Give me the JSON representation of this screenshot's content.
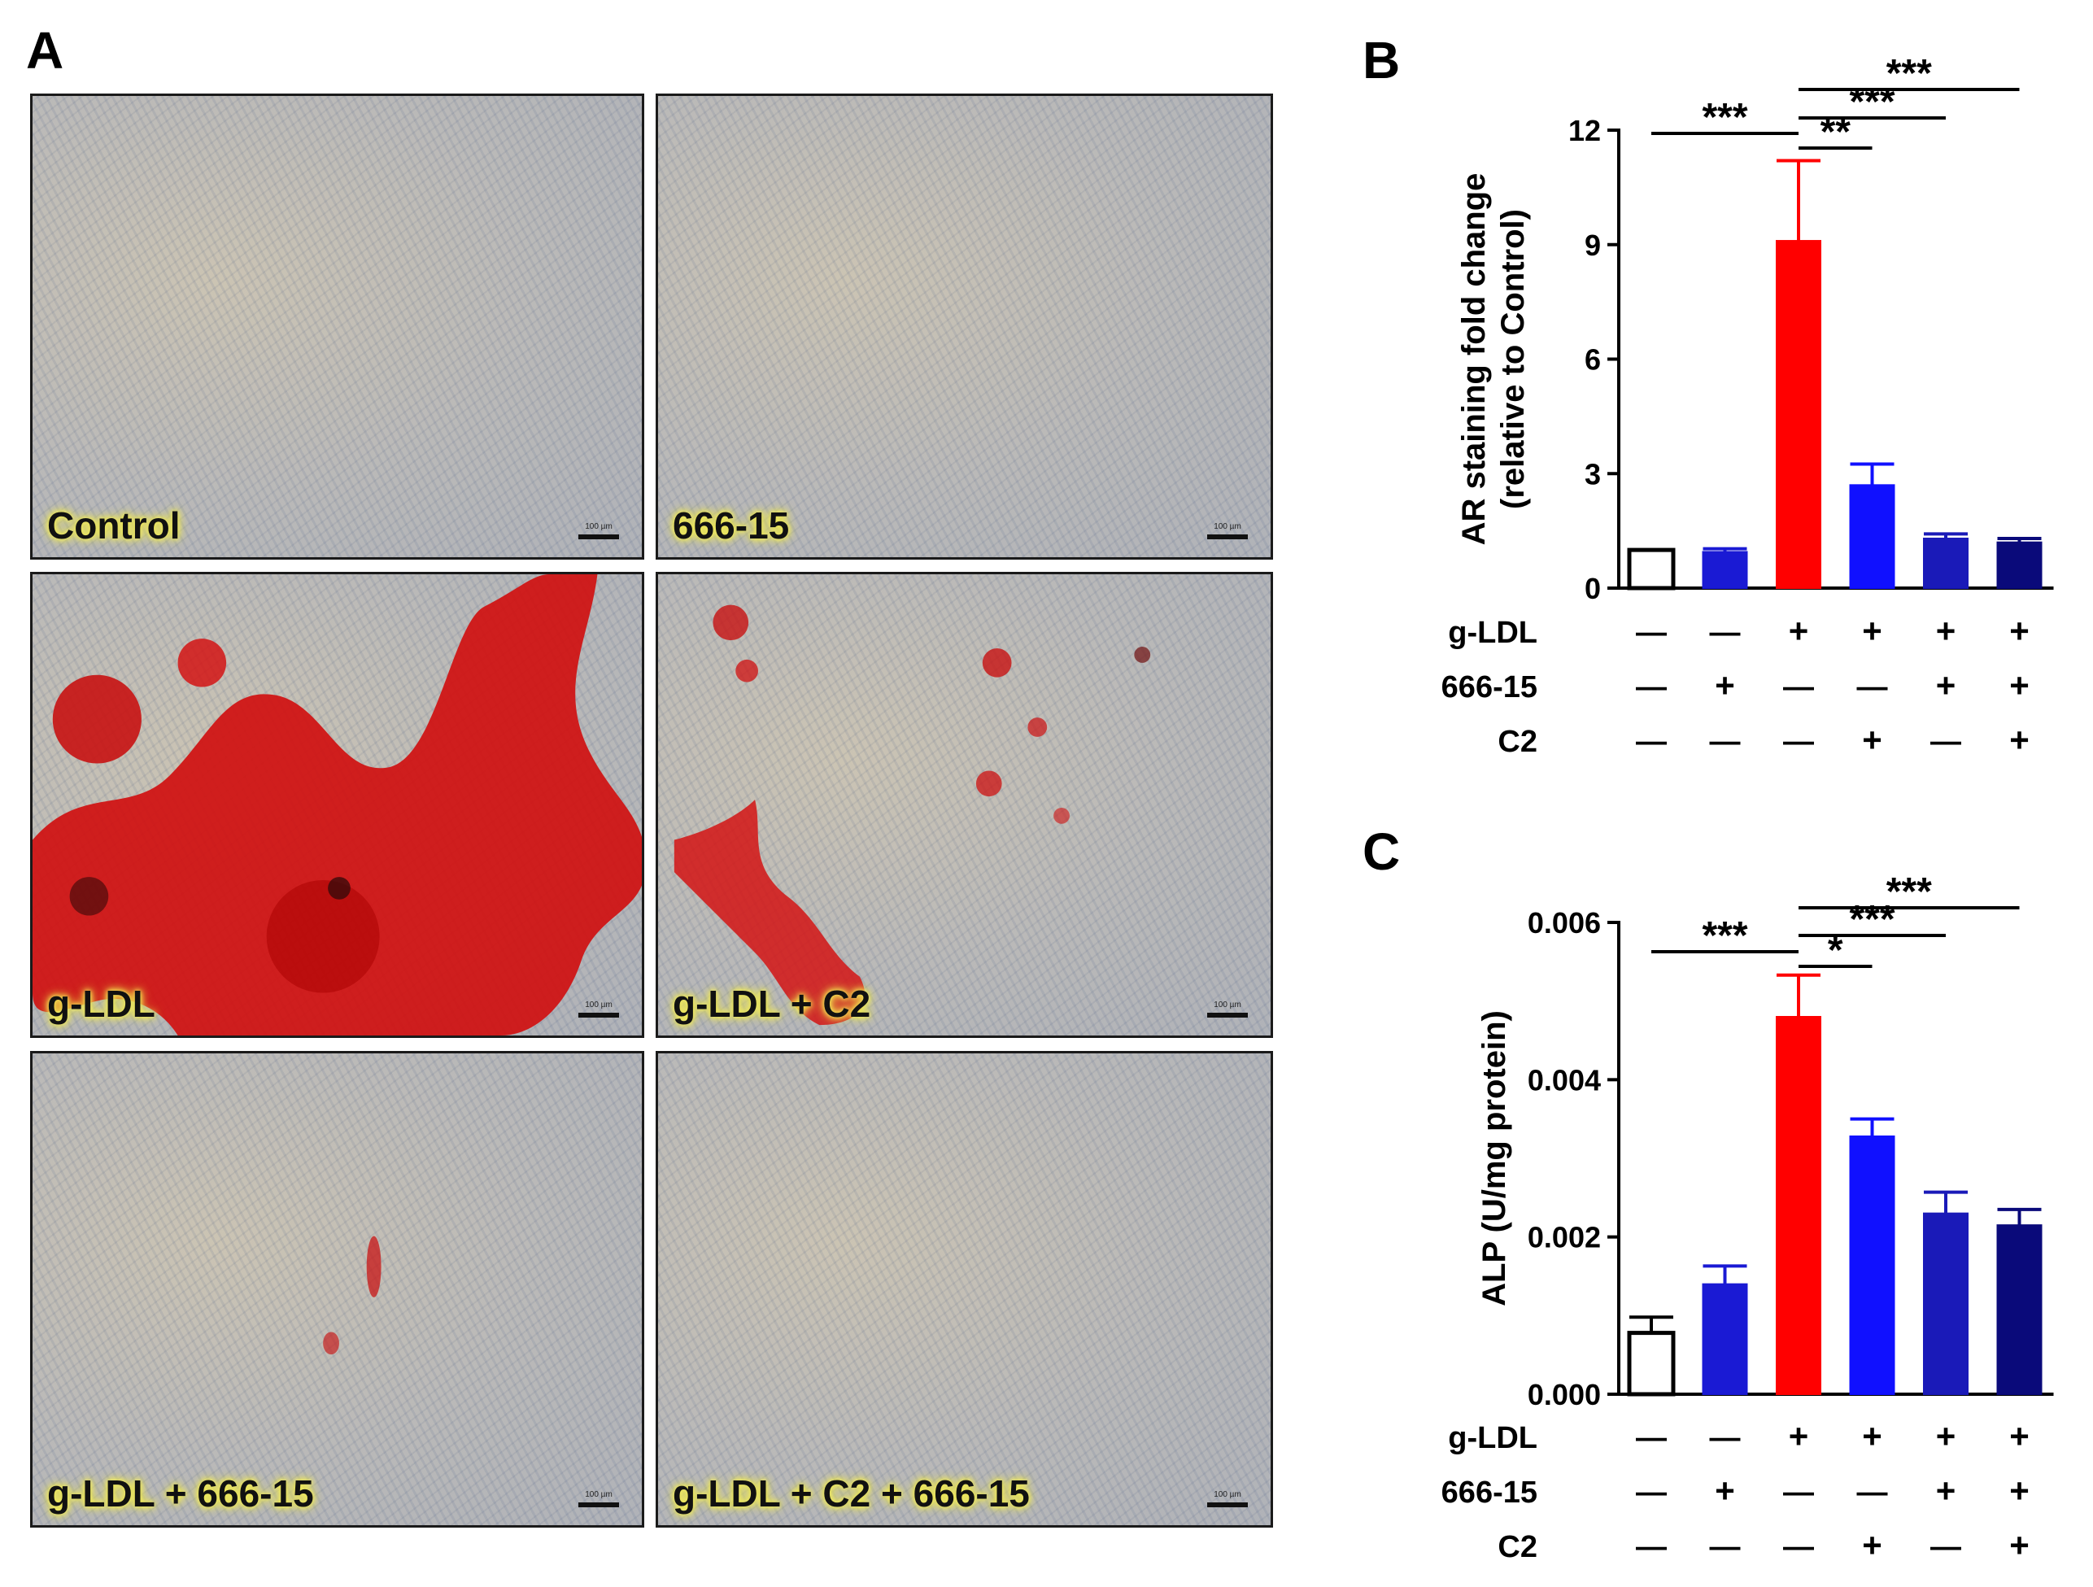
{
  "figure": {
    "panel_a_letter": "A",
    "panel_b_letter": "B",
    "panel_c_letter": "C",
    "micrographs": [
      {
        "label": "Control",
        "scale": "100 µm",
        "stain": "none"
      },
      {
        "label": "666-15",
        "scale": "100 µm",
        "stain": "none"
      },
      {
        "label": "g-LDL",
        "scale": "100 µm",
        "stain": "heavy"
      },
      {
        "label": "g-LDL + C2",
        "scale": "100 µm",
        "stain": "moderate"
      },
      {
        "label": "g-LDL + 666-15",
        "scale": "100 µm",
        "stain": "trace"
      },
      {
        "label": "g-LDL + C2 + 666-15",
        "scale": "100 µm",
        "stain": "none"
      }
    ],
    "treatment_rows": [
      {
        "label": "g-LDL",
        "signs": [
          "—",
          "—",
          "+",
          "+",
          "+",
          "+"
        ]
      },
      {
        "label": "666-15",
        "signs": [
          "—",
          "+",
          "—",
          "—",
          "+",
          "+"
        ]
      },
      {
        "label": "C2",
        "signs": [
          "—",
          "—",
          "—",
          "+",
          "—",
          "+"
        ]
      }
    ]
  },
  "chart_data": [
    {
      "type": "bar",
      "panel": "B",
      "ylabel_line1": "AR staining fold change",
      "ylabel_line2": "(relative to Control)",
      "ylim": [
        0,
        12
      ],
      "yticks": [
        "0",
        "3",
        "6",
        "9",
        "12"
      ],
      "ytick_values": [
        0,
        3,
        6,
        9,
        12
      ],
      "values": [
        1.0,
        0.95,
        9.1,
        2.7,
        1.3,
        1.2
      ],
      "errors": [
        0.0,
        0.08,
        2.1,
        0.55,
        0.12,
        0.1
      ],
      "bar_colors": [
        "#ffffff",
        "#1a1ad4",
        "#ff0000",
        "#1010ff",
        "#1a1ab8",
        "#0a0a7a"
      ],
      "significance": [
        {
          "from": 0,
          "to": 2,
          "label": "***"
        },
        {
          "from": 2,
          "to": 3,
          "label": "**"
        },
        {
          "from": 2,
          "to": 4,
          "label": "***"
        },
        {
          "from": 2,
          "to": 5,
          "label": "***"
        }
      ]
    },
    {
      "type": "bar",
      "panel": "C",
      "ylabel_line1": "ALP (U/mg protein)",
      "ylim": [
        0,
        0.006
      ],
      "yticks": [
        "0.000",
        "0.002",
        "0.004",
        "0.006"
      ],
      "ytick_values": [
        0,
        0.002,
        0.004,
        0.006
      ],
      "values": [
        0.00078,
        0.0014,
        0.0048,
        0.00328,
        0.0023,
        0.00215
      ],
      "errors": [
        0.0002,
        0.00023,
        0.00053,
        0.00022,
        0.00027,
        0.0002
      ],
      "bar_colors": [
        "#ffffff",
        "#1a1ad4",
        "#ff0000",
        "#1010ff",
        "#1a1ab8",
        "#0a0a7a"
      ],
      "significance": [
        {
          "from": 0,
          "to": 2,
          "label": "***"
        },
        {
          "from": 2,
          "to": 3,
          "label": "*"
        },
        {
          "from": 2,
          "to": 4,
          "label": "***"
        },
        {
          "from": 2,
          "to": 5,
          "label": "***"
        }
      ]
    }
  ]
}
